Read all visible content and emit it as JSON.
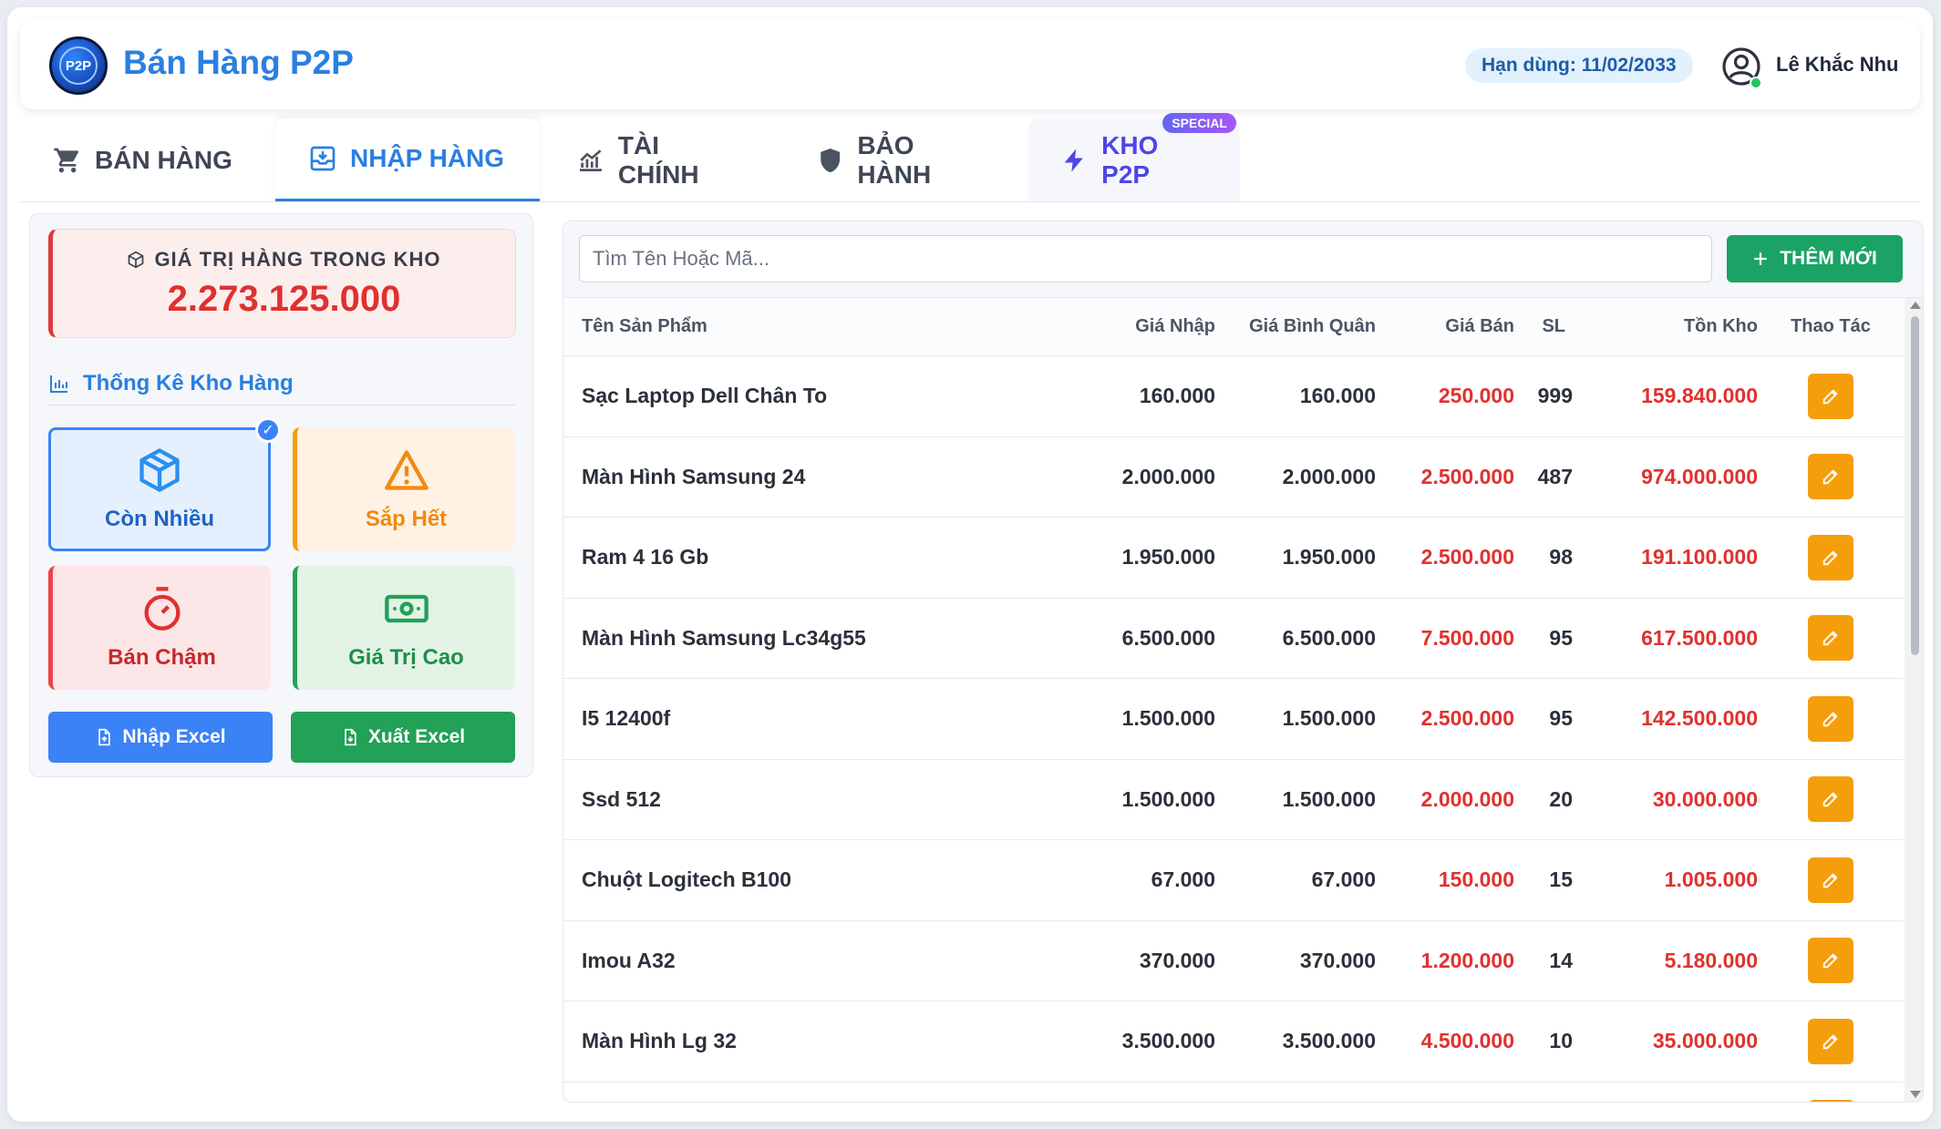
{
  "app": {
    "title": "Bán Hàng P2P",
    "logo_text": "P2P",
    "expiry": "Hạn dùng: 11/02/2033",
    "user_name": "Lê Khắc Nhu"
  },
  "tabs": [
    {
      "label": "BÁN HÀNG",
      "icon": "cart-icon"
    },
    {
      "label": "NHẬP HÀNG",
      "icon": "import-box-icon",
      "active": true
    },
    {
      "label": "TÀI CHÍNH",
      "icon": "chart-line-icon"
    },
    {
      "label": "BẢO HÀNH",
      "icon": "shield-icon"
    },
    {
      "label": "KHO P2P",
      "icon": "bolt-icon",
      "badge": "SPECIAL"
    }
  ],
  "inventory": {
    "value_label": "GIÁ TRỊ HÀNG TRONG KHO",
    "value": "2.273.125.000",
    "stats_title": "Thống Kê Kho Hàng",
    "filters": [
      {
        "label": "Còn Nhiều",
        "icon": "cube-icon",
        "selected": true
      },
      {
        "label": "Sắp Hết",
        "icon": "warning-icon"
      },
      {
        "label": "Bán Chậm",
        "icon": "stopwatch-icon"
      },
      {
        "label": "Giá Trị Cao",
        "icon": "cash-icon"
      }
    ],
    "import_excel": "Nhập Excel",
    "export_excel": "Xuất Excel"
  },
  "toolbar": {
    "search_placeholder": "Tìm Tên Hoặc Mã...",
    "add_label": "THÊM MỚI"
  },
  "table": {
    "headers": {
      "name": "Tên Sản Phẩm",
      "import_price": "Giá Nhập",
      "avg_price": "Giá Bình Quân",
      "sell_price": "Giá Bán",
      "qty": "SL",
      "stock": "Tồn Kho",
      "action": "Thao Tác"
    },
    "rows": [
      {
        "name": "Sạc Laptop Dell Chân To",
        "import_price": "160.000",
        "avg_price": "160.000",
        "sell_price": "250.000",
        "qty": "999",
        "stock": "159.840.000"
      },
      {
        "name": "Màn Hình Samsung 24",
        "import_price": "2.000.000",
        "avg_price": "2.000.000",
        "sell_price": "2.500.000",
        "qty": "487",
        "stock": "974.000.000"
      },
      {
        "name": "Ram 4 16 Gb",
        "import_price": "1.950.000",
        "avg_price": "1.950.000",
        "sell_price": "2.500.000",
        "qty": "98",
        "stock": "191.100.000"
      },
      {
        "name": "Màn Hình Samsung Lc34g55",
        "import_price": "6.500.000",
        "avg_price": "6.500.000",
        "sell_price": "7.500.000",
        "qty": "95",
        "stock": "617.500.000"
      },
      {
        "name": "I5 12400f",
        "import_price": "1.500.000",
        "avg_price": "1.500.000",
        "sell_price": "2.500.000",
        "qty": "95",
        "stock": "142.500.000"
      },
      {
        "name": "Ssd 512",
        "import_price": "1.500.000",
        "avg_price": "1.500.000",
        "sell_price": "2.000.000",
        "qty": "20",
        "stock": "30.000.000"
      },
      {
        "name": "Chuột Logitech B100",
        "import_price": "67.000",
        "avg_price": "67.000",
        "sell_price": "150.000",
        "qty": "15",
        "stock": "1.005.000"
      },
      {
        "name": "Imou A32",
        "import_price": "370.000",
        "avg_price": "370.000",
        "sell_price": "1.200.000",
        "qty": "14",
        "stock": "5.180.000"
      },
      {
        "name": "Màn Hình Lg 32",
        "import_price": "3.500.000",
        "avg_price": "3.500.000",
        "sell_price": "4.500.000",
        "qty": "10",
        "stock": "35.000.000"
      }
    ]
  },
  "colors": {
    "primary": "#2b7fe0",
    "danger": "#e0312f",
    "success": "#22a157",
    "warning": "#f59e0b"
  }
}
